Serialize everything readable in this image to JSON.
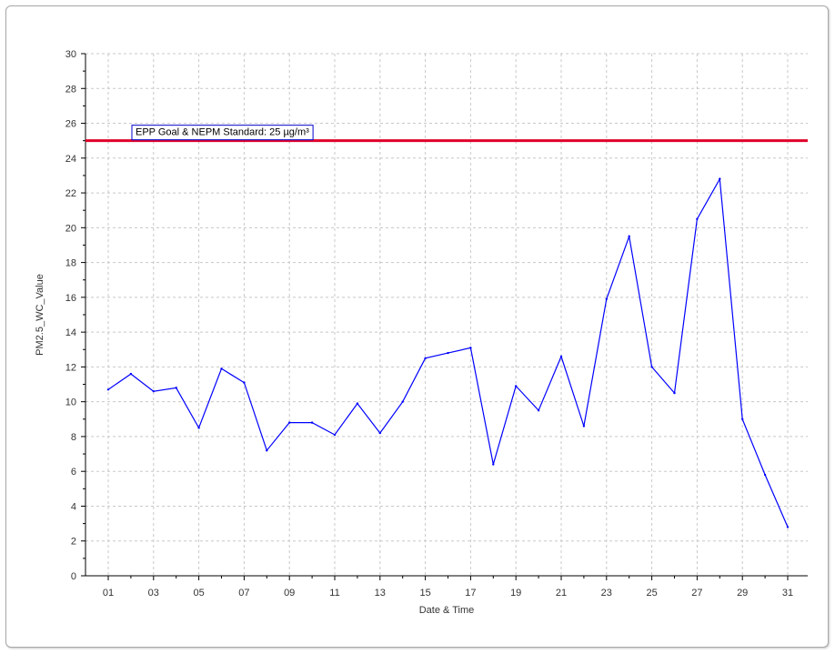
{
  "chart_data": {
    "type": "line",
    "title": "",
    "xlabel": "Date & Time",
    "ylabel": "PM2.5_WC_Value",
    "xlim": [
      1,
      31
    ],
    "ylim": [
      0,
      30
    ],
    "y_ticks": [
      "0",
      "2",
      "4",
      "6",
      "8",
      "10",
      "12",
      "14",
      "16",
      "18",
      "20",
      "22",
      "24",
      "26",
      "28",
      "30"
    ],
    "x_ticks": [
      "01",
      "03",
      "05",
      "07",
      "09",
      "11",
      "13",
      "15",
      "17",
      "19",
      "21",
      "23",
      "25",
      "27",
      "29",
      "31"
    ],
    "grid": true,
    "series": [
      {
        "color": "#0000ff",
        "x": [
          1,
          2,
          3,
          4,
          5,
          6,
          7,
          8,
          9,
          10,
          11,
          12,
          13,
          14,
          15,
          16,
          17,
          18,
          19,
          20,
          21,
          22,
          23,
          24,
          25,
          26,
          27,
          28,
          29,
          30,
          31
        ],
        "values": [
          10.7,
          11.6,
          10.6,
          10.8,
          8.5,
          11.9,
          11.1,
          7.2,
          8.8,
          8.8,
          8.1,
          9.9,
          8.2,
          10.0,
          12.5,
          12.8,
          13.1,
          6.4,
          10.9,
          9.5,
          12.6,
          8.6,
          15.9,
          19.5,
          12.0,
          10.5,
          20.5,
          22.8,
          9.0,
          5.8,
          2.8
        ]
      }
    ],
    "reference_line": {
      "value": 25,
      "color": "#e0002a",
      "label": "EPP Goal & NEPM Standard: 25 µg/m³"
    }
  }
}
